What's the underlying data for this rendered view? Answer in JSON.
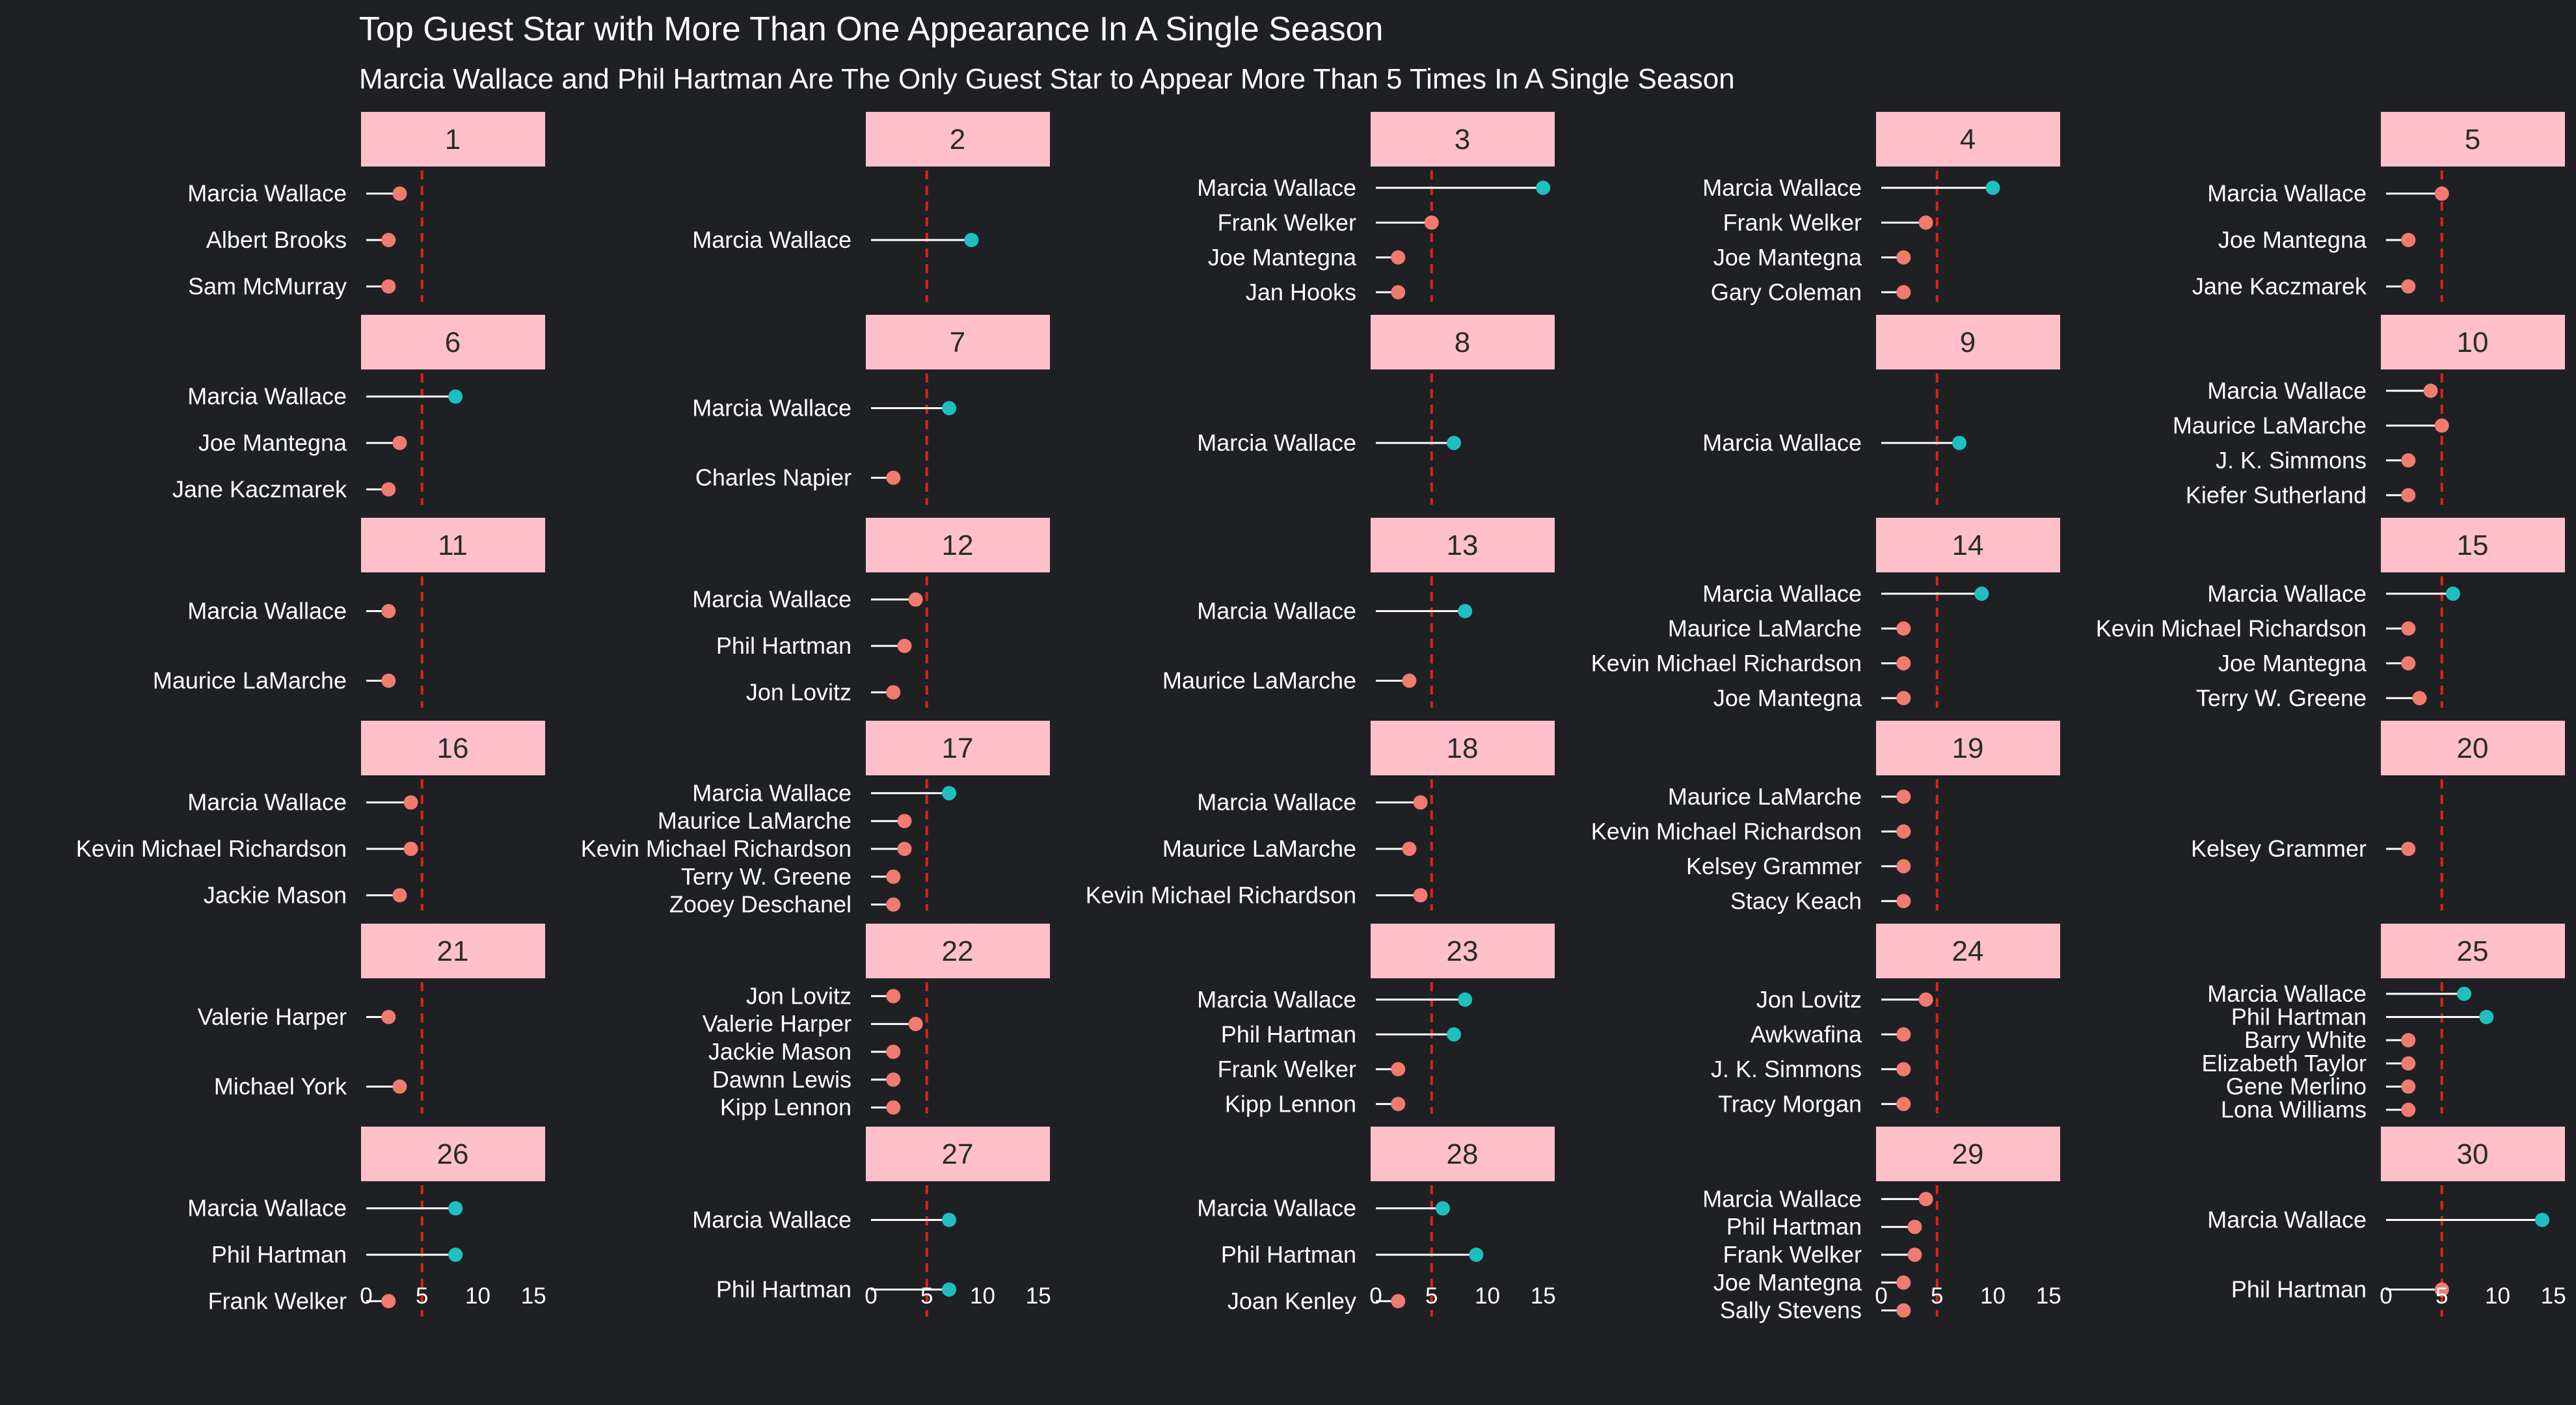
{
  "chart_data": {
    "type": "lollipop-facet",
    "title": "Top Guest Star with More Than One Appearance In A Single Season",
    "subtitle": "Marcia Wallace and Phil Hartman Are The Only Guest Star to Appear More Than 5 Times In A Single Season",
    "x_ticks": [
      0,
      5,
      10,
      15
    ],
    "xlim": [
      0,
      15
    ],
    "reference_line": 5,
    "colors": {
      "background": "#1e2024",
      "strip": "#ffc0cb",
      "low": "#f07b6e",
      "high": "#1fbfc0",
      "reference": "#e0201b",
      "stem": "#ffffff"
    },
    "color_rule": "teal when appearances > 5, salmon otherwise",
    "facets": [
      {
        "season": "1",
        "guests": [
          {
            "name": "Marcia Wallace",
            "value": 3
          },
          {
            "name": "Albert Brooks",
            "value": 2
          },
          {
            "name": "Sam McMurray",
            "value": 2
          }
        ]
      },
      {
        "season": "2",
        "guests": [
          {
            "name": "Marcia Wallace",
            "value": 9
          }
        ]
      },
      {
        "season": "3",
        "guests": [
          {
            "name": "Marcia Wallace",
            "value": 15
          },
          {
            "name": "Frank Welker",
            "value": 5
          },
          {
            "name": "Joe Mantegna",
            "value": 2
          },
          {
            "name": "Jan Hooks",
            "value": 2
          }
        ]
      },
      {
        "season": "4",
        "guests": [
          {
            "name": "Marcia Wallace",
            "value": 10
          },
          {
            "name": "Frank Welker",
            "value": 4
          },
          {
            "name": "Joe Mantegna",
            "value": 2
          },
          {
            "name": "Gary Coleman",
            "value": 2
          }
        ]
      },
      {
        "season": "5",
        "guests": [
          {
            "name": "Marcia Wallace",
            "value": 5
          },
          {
            "name": "Joe Mantegna",
            "value": 2
          },
          {
            "name": "Jane Kaczmarek",
            "value": 2
          }
        ]
      },
      {
        "season": "6",
        "guests": [
          {
            "name": "Marcia Wallace",
            "value": 8
          },
          {
            "name": "Joe Mantegna",
            "value": 3
          },
          {
            "name": "Jane Kaczmarek",
            "value": 2
          }
        ]
      },
      {
        "season": "7",
        "guests": [
          {
            "name": "Marcia Wallace",
            "value": 7
          },
          {
            "name": "Charles Napier",
            "value": 2
          }
        ]
      },
      {
        "season": "8",
        "guests": [
          {
            "name": "Marcia Wallace",
            "value": 7
          }
        ]
      },
      {
        "season": "9",
        "guests": [
          {
            "name": "Marcia Wallace",
            "value": 7
          }
        ]
      },
      {
        "season": "10",
        "guests": [
          {
            "name": "Marcia Wallace",
            "value": 4
          },
          {
            "name": "Maurice LaMarche",
            "value": 5
          },
          {
            "name": "J. K. Simmons",
            "value": 2
          },
          {
            "name": "Kiefer Sutherland",
            "value": 2
          }
        ]
      },
      {
        "season": "11",
        "guests": [
          {
            "name": "Marcia Wallace",
            "value": 2
          },
          {
            "name": "Maurice LaMarche",
            "value": 2
          }
        ]
      },
      {
        "season": "12",
        "guests": [
          {
            "name": "Marcia Wallace",
            "value": 4
          },
          {
            "name": "Phil Hartman",
            "value": 3
          },
          {
            "name": "Jon Lovitz",
            "value": 2
          }
        ]
      },
      {
        "season": "13",
        "guests": [
          {
            "name": "Marcia Wallace",
            "value": 8
          },
          {
            "name": "Maurice LaMarche",
            "value": 3
          }
        ]
      },
      {
        "season": "14",
        "guests": [
          {
            "name": "Marcia Wallace",
            "value": 9
          },
          {
            "name": "Maurice LaMarche",
            "value": 2
          },
          {
            "name": "Kevin Michael Richardson",
            "value": 2
          },
          {
            "name": "Joe Mantegna",
            "value": 2
          }
        ]
      },
      {
        "season": "15",
        "guests": [
          {
            "name": "Marcia Wallace",
            "value": 6
          },
          {
            "name": "Kevin Michael Richardson",
            "value": 2
          },
          {
            "name": "Joe Mantegna",
            "value": 2
          },
          {
            "name": "Terry W. Greene",
            "value": 3
          }
        ]
      },
      {
        "season": "16",
        "guests": [
          {
            "name": "Marcia Wallace",
            "value": 4
          },
          {
            "name": "Kevin Michael Richardson",
            "value": 4
          },
          {
            "name": "Jackie Mason",
            "value": 3
          }
        ]
      },
      {
        "season": "17",
        "guests": [
          {
            "name": "Marcia Wallace",
            "value": 7
          },
          {
            "name": "Maurice LaMarche",
            "value": 3
          },
          {
            "name": "Kevin Michael Richardson",
            "value": 3
          },
          {
            "name": "Terry W. Greene",
            "value": 2
          },
          {
            "name": "Zooey Deschanel",
            "value": 2
          }
        ]
      },
      {
        "season": "18",
        "guests": [
          {
            "name": "Marcia Wallace",
            "value": 4
          },
          {
            "name": "Maurice LaMarche",
            "value": 3
          },
          {
            "name": "Kevin Michael Richardson",
            "value": 4
          }
        ]
      },
      {
        "season": "19",
        "guests": [
          {
            "name": "Maurice LaMarche",
            "value": 2
          },
          {
            "name": "Kevin Michael Richardson",
            "value": 2
          },
          {
            "name": "Kelsey Grammer",
            "value": 2
          },
          {
            "name": "Stacy Keach",
            "value": 2
          }
        ]
      },
      {
        "season": "20",
        "guests": [
          {
            "name": "Kelsey Grammer",
            "value": 2
          }
        ]
      },
      {
        "season": "21",
        "guests": [
          {
            "name": "Valerie Harper",
            "value": 2
          },
          {
            "name": "Michael York",
            "value": 3
          }
        ]
      },
      {
        "season": "22",
        "guests": [
          {
            "name": "Jon Lovitz",
            "value": 2
          },
          {
            "name": "Valerie Harper",
            "value": 4
          },
          {
            "name": "Jackie Mason",
            "value": 2
          },
          {
            "name": "Dawnn Lewis",
            "value": 2
          },
          {
            "name": "Kipp Lennon",
            "value": 2
          }
        ]
      },
      {
        "season": "23",
        "guests": [
          {
            "name": "Marcia Wallace",
            "value": 8
          },
          {
            "name": "Phil Hartman",
            "value": 7
          },
          {
            "name": "Frank Welker",
            "value": 2
          },
          {
            "name": "Kipp Lennon",
            "value": 2
          }
        ]
      },
      {
        "season": "24",
        "guests": [
          {
            "name": "Jon Lovitz",
            "value": 4
          },
          {
            "name": "Awkwafina",
            "value": 2
          },
          {
            "name": "J. K. Simmons",
            "value": 2
          },
          {
            "name": "Tracy Morgan",
            "value": 2
          }
        ]
      },
      {
        "season": "25",
        "guests": [
          {
            "name": "Marcia Wallace",
            "value": 7
          },
          {
            "name": "Phil Hartman",
            "value": 9
          },
          {
            "name": "Barry White",
            "value": 2
          },
          {
            "name": "Elizabeth Taylor",
            "value": 2
          },
          {
            "name": "Gene Merlino",
            "value": 2
          },
          {
            "name": "Lona Williams",
            "value": 2
          }
        ]
      },
      {
        "season": "26",
        "guests": [
          {
            "name": "Marcia Wallace",
            "value": 8
          },
          {
            "name": "Phil Hartman",
            "value": 8
          },
          {
            "name": "Frank Welker",
            "value": 2
          }
        ]
      },
      {
        "season": "27",
        "guests": [
          {
            "name": "Marcia Wallace",
            "value": 7
          },
          {
            "name": "Phil Hartman",
            "value": 7
          }
        ]
      },
      {
        "season": "28",
        "guests": [
          {
            "name": "Marcia Wallace",
            "value": 6
          },
          {
            "name": "Phil Hartman",
            "value": 9
          },
          {
            "name": "Joan Kenley",
            "value": 2
          }
        ]
      },
      {
        "season": "29",
        "guests": [
          {
            "name": "Marcia Wallace",
            "value": 4
          },
          {
            "name": "Phil Hartman",
            "value": 3
          },
          {
            "name": "Frank Welker",
            "value": 3
          },
          {
            "name": "Joe Mantegna",
            "value": 2
          },
          {
            "name": "Sally Stevens",
            "value": 2
          }
        ]
      },
      {
        "season": "30",
        "guests": [
          {
            "name": "Marcia Wallace",
            "value": 14
          },
          {
            "name": "Phil Hartman",
            "value": 5
          }
        ]
      }
    ]
  }
}
